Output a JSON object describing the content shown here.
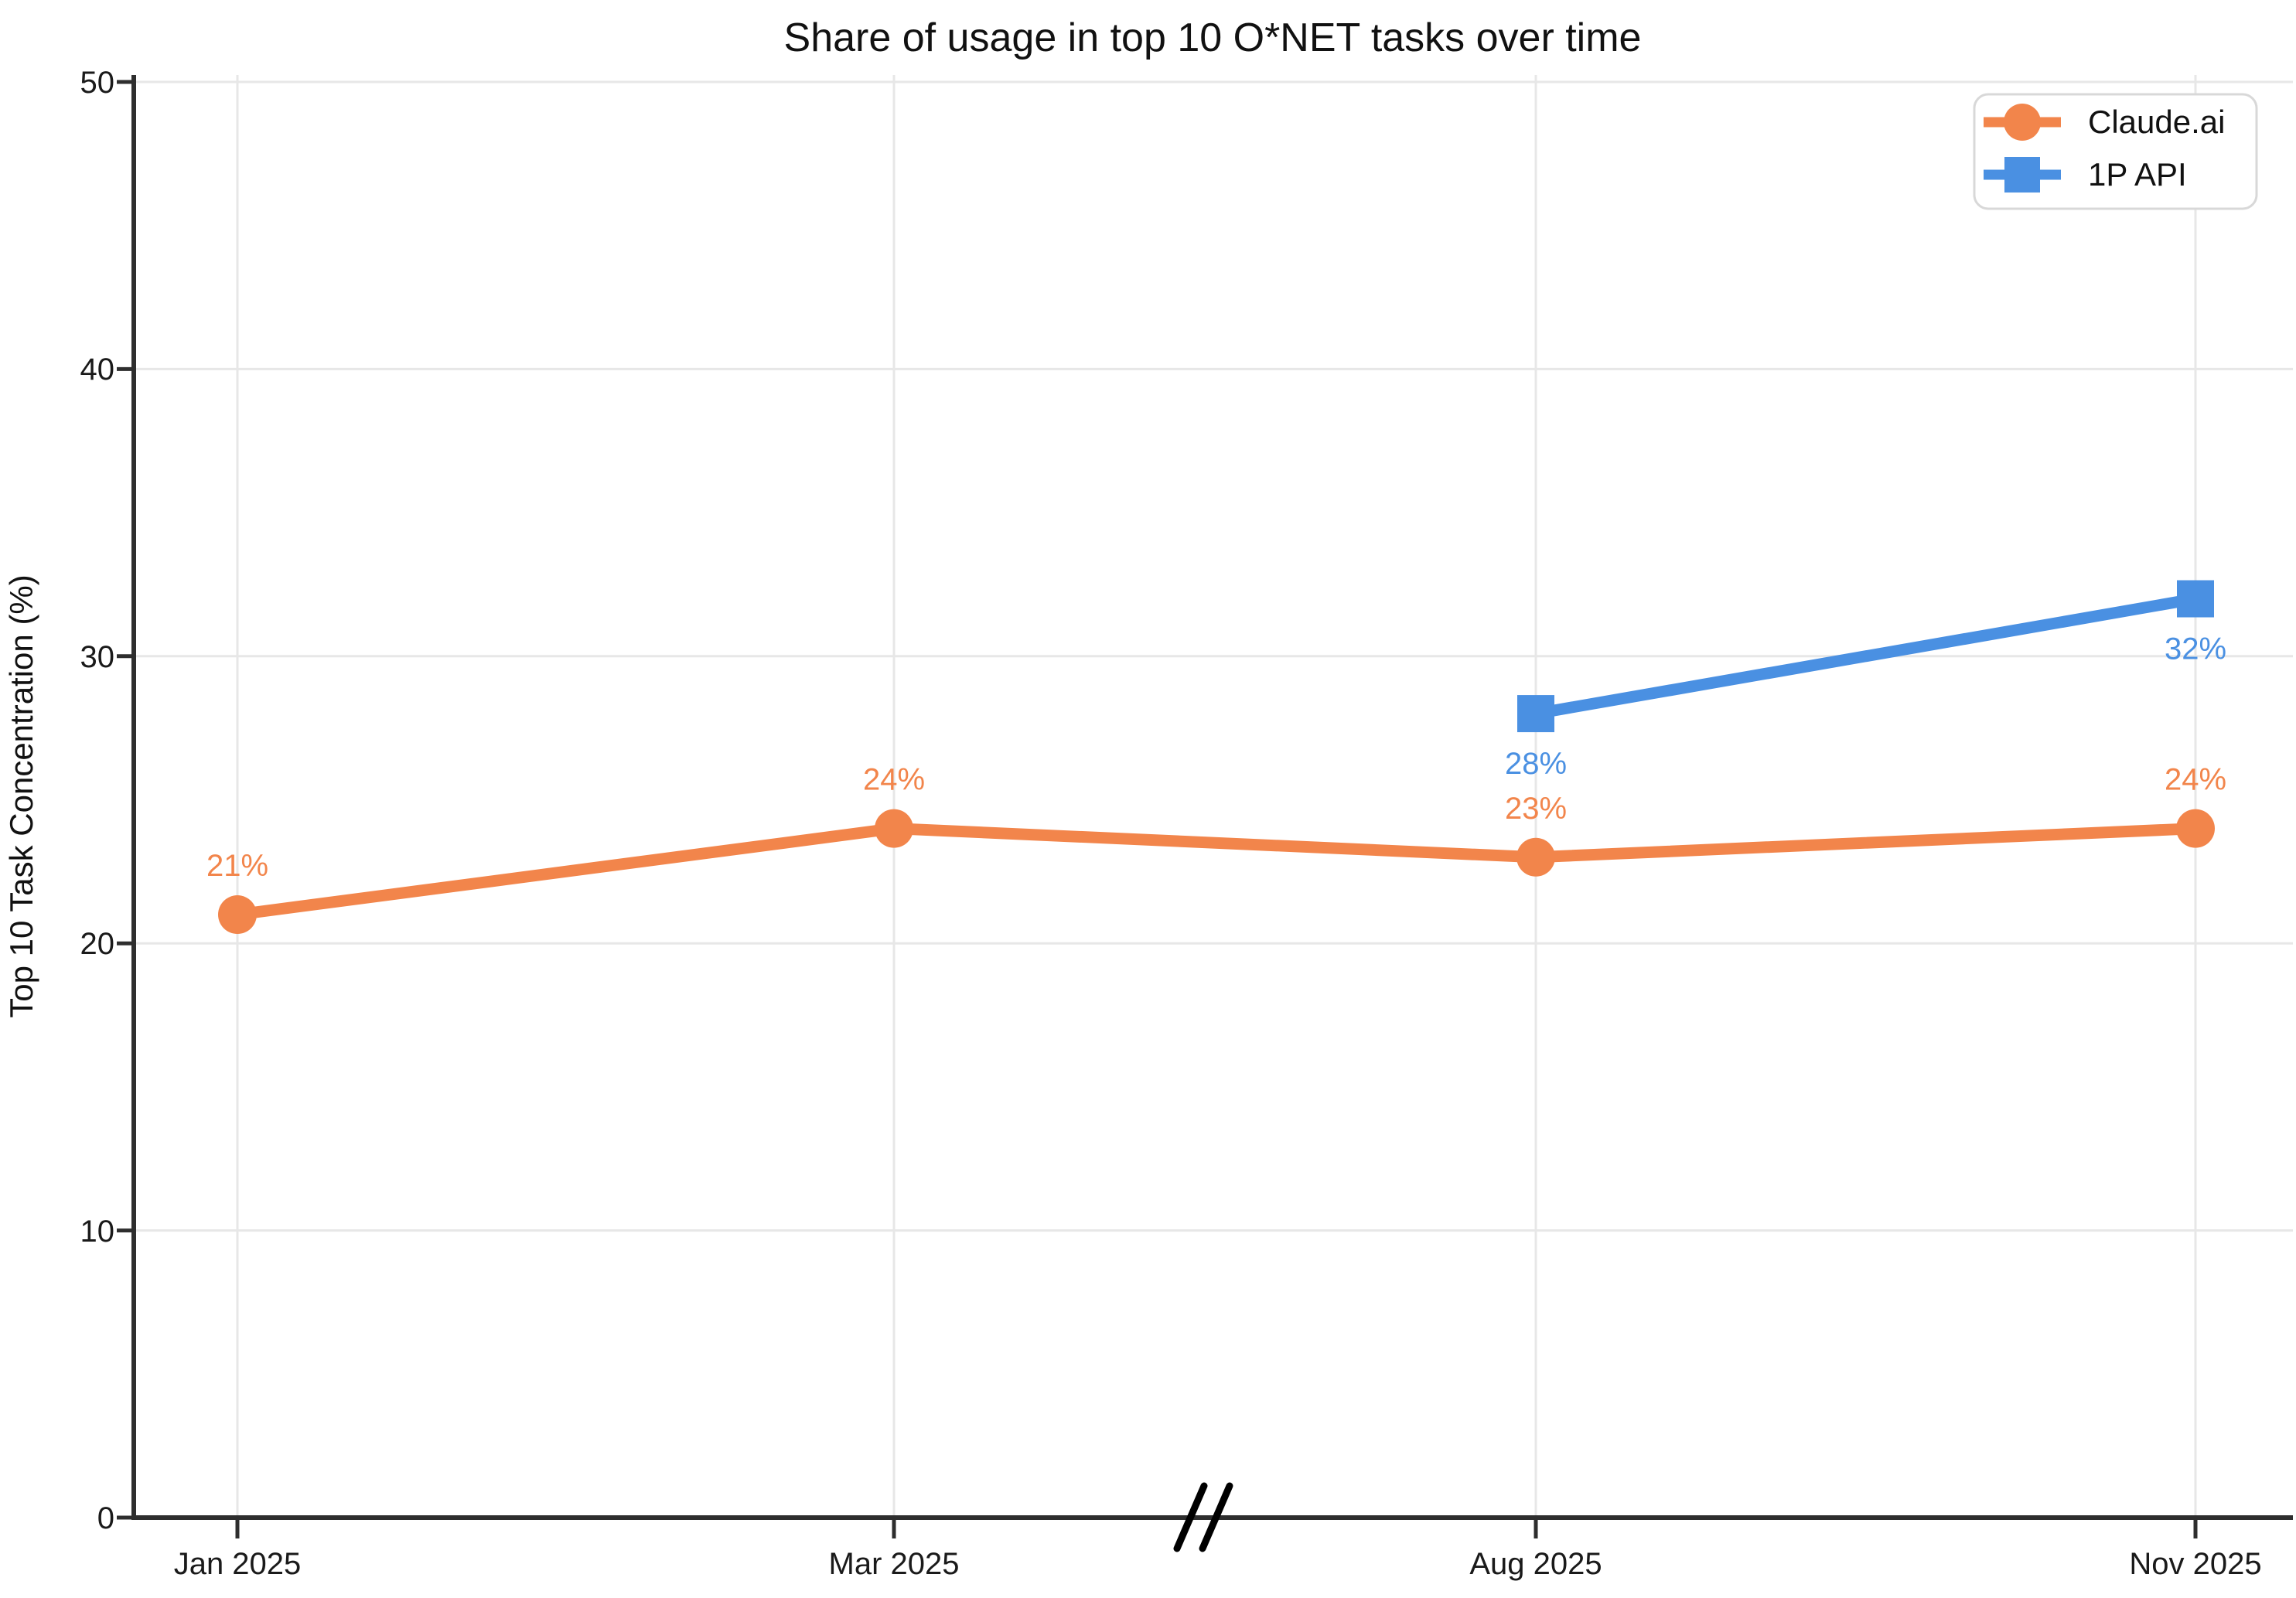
{
  "title": "Share of usage in top 10 O*NET tasks over time",
  "chart_data": {
    "type": "line",
    "title": "Share of usage in top 10 O*NET tasks over time",
    "xlabel": "",
    "ylabel": "Top 10 Task Concentration (%)",
    "ylim": [
      0,
      50
    ],
    "y_ticks": [
      "0",
      "10",
      "20",
      "30",
      "40",
      "50"
    ],
    "y_tick_values": [
      0,
      10,
      20,
      30,
      40,
      50
    ],
    "x_categories": [
      "Jan 2025",
      "Mar 2025",
      "Aug 2025",
      "Nov 2025"
    ],
    "grid": "on",
    "legend_position": "top-right",
    "axis_break": {
      "present": true,
      "between": [
        "Mar 2025",
        "Aug 2025"
      ],
      "symbol": "//"
    },
    "series": [
      {
        "name": "Claude.ai",
        "color": "#F2854B",
        "marker": "circle",
        "x": [
          "Jan 2025",
          "Mar 2025",
          "Aug 2025",
          "Nov 2025"
        ],
        "values": [
          21,
          24,
          23,
          24
        ],
        "labels": [
          "21%",
          "24%",
          "23%",
          "24%"
        ],
        "label_position": "above"
      },
      {
        "name": "1P API",
        "color": "#4A90E2",
        "marker": "square",
        "x": [
          "Aug 2025",
          "Nov 2025"
        ],
        "values": [
          28,
          32
        ],
        "labels": [
          "28%",
          "32%"
        ],
        "label_position": "below"
      }
    ]
  },
  "colors": {
    "orange": "#F2854B",
    "blue": "#4A90E2",
    "axis": "#2e2e2e",
    "grid": "#e7e7e7",
    "text": "#111111",
    "legend_border": "#d8d8d8",
    "background": "#ffffff"
  }
}
